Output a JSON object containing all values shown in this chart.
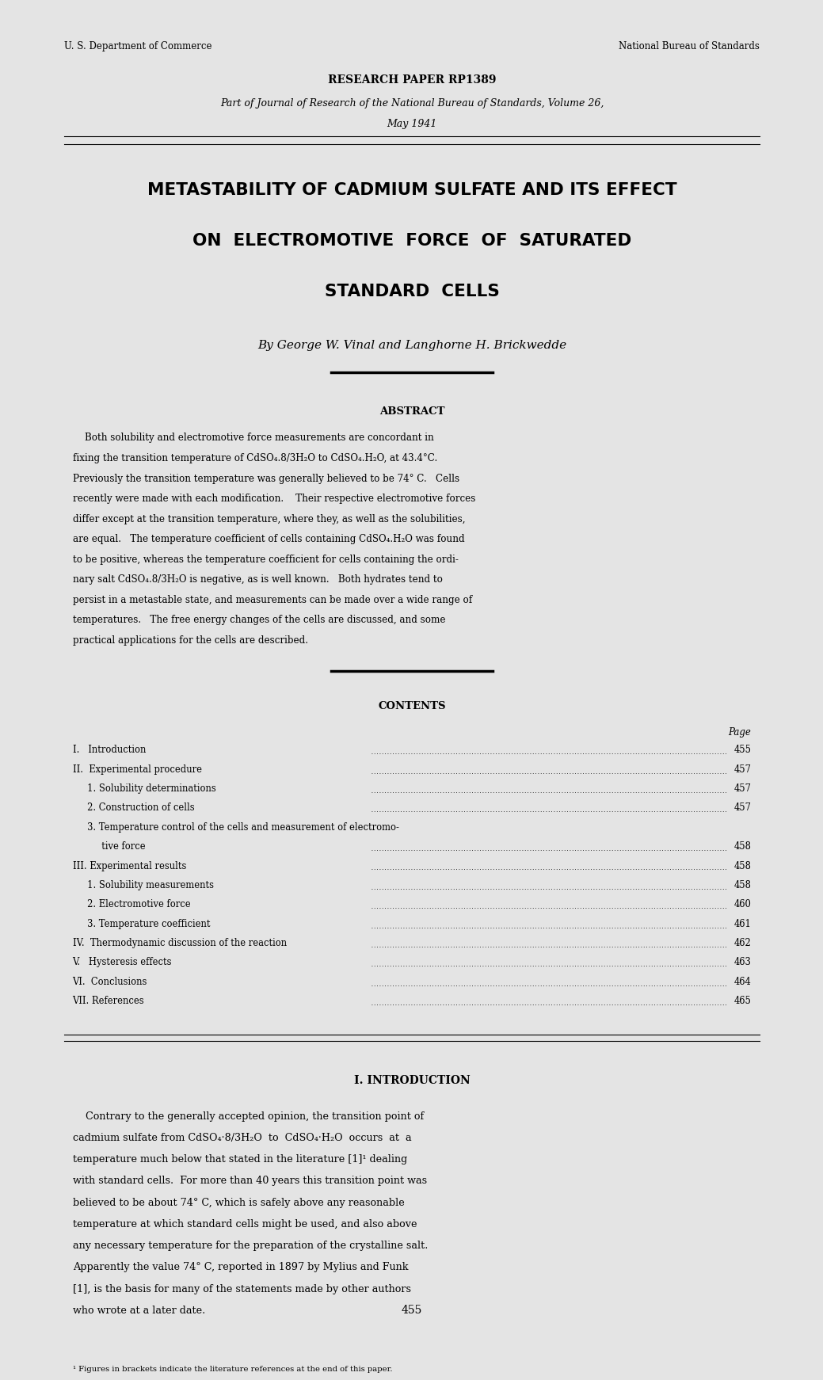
{
  "bg_color": "#e4e4e4",
  "header_left": "U. S. Department of Commerce",
  "header_right": "National Bureau of Standards",
  "research_paper": "RESEARCH PAPER RP1389",
  "journal_line1": "Part of Journal of Research of the National Bureau of Standards, Volume 26,",
  "journal_line2": "May 1941",
  "title_line1": "METASTABILITY OF CADMIUM SULFATE AND ITS EFFECT",
  "title_line2": "ON  ELECTROMOTIVE  FORCE  OF  SATURATED",
  "title_line3": "STANDARD  CELLS",
  "byline": "By George W. Vinal and Langhorne H. Brickwedde",
  "abstract_header": "ABSTRACT",
  "contents_header": "CONTENTS",
  "contents_page_label": "Page",
  "contents_items": [
    [
      "I.   Introduction",
      "455"
    ],
    [
      "II.  Experimental procedure",
      "457"
    ],
    [
      "     1. Solubility determinations",
      "457"
    ],
    [
      "     2. Construction of cells",
      "457"
    ],
    [
      "     3. Temperature control of the cells and measurement of electromo-",
      ""
    ],
    [
      "          tive force",
      "458"
    ],
    [
      "III. Experimental results",
      "458"
    ],
    [
      "     1. Solubility measurements",
      "458"
    ],
    [
      "     2. Electromotive force",
      "460"
    ],
    [
      "     3. Temperature coefficient",
      "461"
    ],
    [
      "IV.  Thermodynamic discussion of the reaction",
      "462"
    ],
    [
      "V.   Hysteresis effects",
      "463"
    ],
    [
      "VI.  Conclusions",
      "464"
    ],
    [
      "VII. References",
      "465"
    ]
  ],
  "intro_header": "I. INTRODUCTION",
  "abstract_lines": [
    "    Both solubility and electromotive force measurements are concordant in",
    "fixing the transition temperature of CdSO₄.8/3H₂O to CdSO₄.H₂O, at 43.4°C.",
    "Previously the transition temperature was generally believed to be 74° C.   Cells",
    "recently were made with each modification.    Their respective electromotive forces",
    "differ except at the transition temperature, where they, as well as the solubilities,",
    "are equal.   The temperature coefficient of cells containing CdSO₄.H₂O was found",
    "to be positive, whereas the temperature coefficient for cells containing the ordi-",
    "nary salt CdSO₄.8/3H₂O is negative, as is well known.   Both hydrates tend to",
    "persist in a metastable state, and measurements can be made over a wide range of",
    "temperatures.   The free energy changes of the cells are discussed, and some",
    "practical applications for the cells are described."
  ],
  "intro_lines": [
    "    Contrary to the generally accepted opinion, the transition point of",
    "cadmium sulfate from CdSO₄·8/3H₂O  to  CdSO₄·H₂O  occurs  at  a",
    "temperature much below that stated in the literature [1]¹ dealing",
    "with standard cells.  For more than 40 years this transition point was",
    "believed to be about 74° C, which is safely above any reasonable",
    "temperature at which standard cells might be used, and also above",
    "any necessary temperature for the preparation of the crystalline salt.",
    "Apparently the value 74° C, reported in 1897 by Mylius and Funk",
    "[1], is the basis for many of the statements made by other authors",
    "who wrote at a later date."
  ],
  "footnote": "¹ Figures in brackets indicate the literature references at the end of this paper.",
  "page_number": "455"
}
